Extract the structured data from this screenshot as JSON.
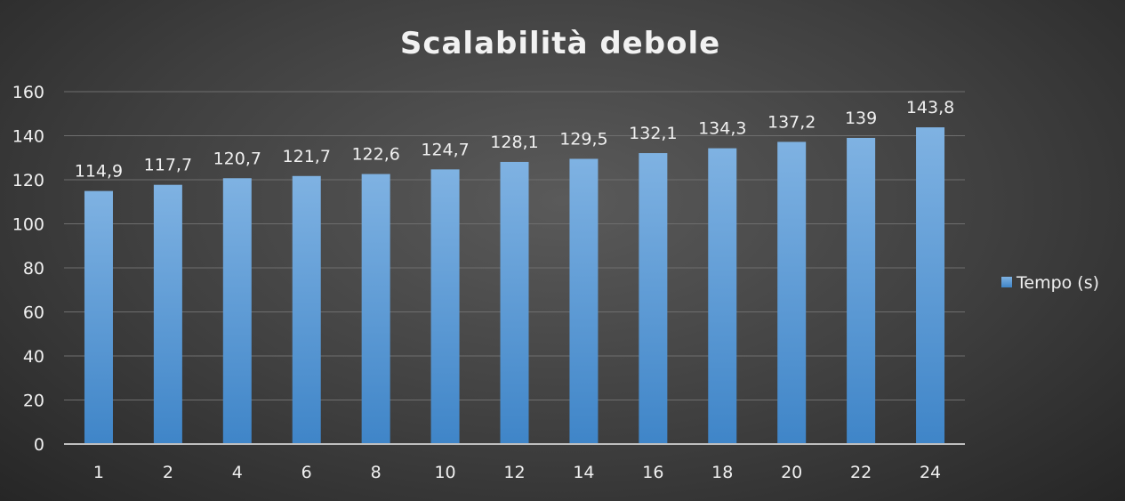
{
  "chart_data": {
    "type": "bar",
    "title": "Scalabilità debole",
    "xlabel": "",
    "ylabel": "",
    "categories": [
      "1",
      "2",
      "4",
      "6",
      "8",
      "10",
      "12",
      "14",
      "16",
      "18",
      "20",
      "22",
      "24"
    ],
    "series": [
      {
        "name": "Tempo (s)",
        "values": [
          114.9,
          117.7,
          120.7,
          121.7,
          122.6,
          124.7,
          128.1,
          129.5,
          132.1,
          134.3,
          137.2,
          139,
          143.8
        ],
        "data_labels": [
          "114,9",
          "117,7",
          "120,7",
          "121,7",
          "122,6",
          "124,7",
          "128,1",
          "129,5",
          "132,1",
          "134,3",
          "137,2",
          "139",
          "143,8"
        ],
        "color": "#5b9bd5"
      }
    ],
    "ylim": [
      0,
      160
    ],
    "yticks": [
      "0",
      "20",
      "40",
      "60",
      "80",
      "100",
      "120",
      "140",
      "160"
    ],
    "grid": true,
    "legend_position": "right"
  }
}
